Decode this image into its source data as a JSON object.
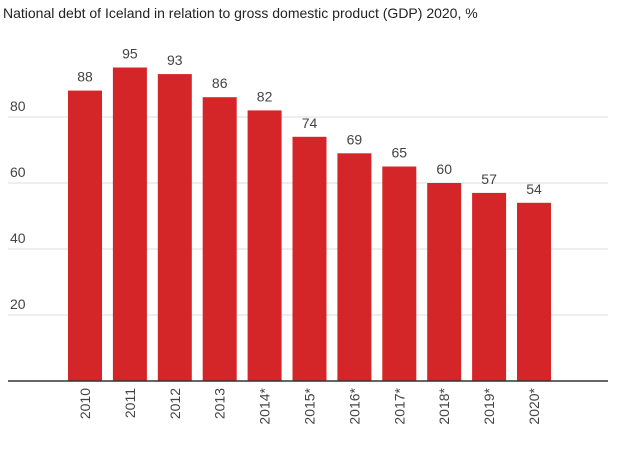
{
  "chart_data": {
    "type": "bar",
    "title": "National debt of Iceland in relation to gross domestic product (GDP) 2020, %",
    "xlabel": "",
    "ylabel": "",
    "categories": [
      "2010",
      "2011",
      "2012",
      "2013",
      "2014*",
      "2015*",
      "2016*",
      "2017*",
      "2018*",
      "2019*",
      "2020*"
    ],
    "values": [
      88,
      95,
      93,
      86,
      82,
      74,
      69,
      65,
      60,
      57,
      54
    ],
    "ylim": [
      0,
      100
    ],
    "yticks": [
      20,
      40,
      60,
      80
    ],
    "grid": true,
    "bar_color": "#d42528",
    "legend": "none"
  }
}
